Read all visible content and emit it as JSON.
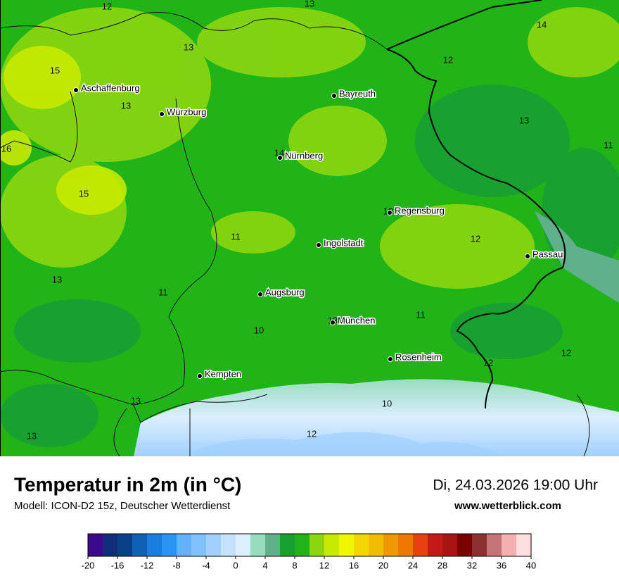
{
  "header": {
    "title": "Temperatur in 2m (in °C)",
    "subtitle": "Modell: ICON-D2 15z, Deutscher Wetterdienst",
    "date": "Di, 24.03.2026 19:00 Uhr",
    "website": "www.wetterblick.com"
  },
  "cities": [
    "Aschaffenburg",
    "Würzburg",
    "Bayreuth",
    "Nürnberg",
    "Regensburg",
    "Ingolstadt",
    "Passau",
    "Augsburg",
    "München",
    "Rosenheim",
    "Kempten"
  ],
  "map_labels": [
    12,
    13,
    14,
    13,
    12,
    15,
    13,
    13,
    16,
    11,
    14,
    15,
    13,
    11,
    12,
    13,
    11,
    11,
    10,
    13,
    12,
    12,
    13,
    10,
    12,
    13
  ],
  "colorbar": {
    "range": [
      -20,
      40
    ],
    "ticks": [
      -20,
      -16,
      -12,
      -8,
      -4,
      0,
      4,
      8,
      12,
      16,
      20,
      24,
      28,
      32,
      36,
      40
    ],
    "colors": [
      "#3a0a8a",
      "#0f2d78",
      "#0a4088",
      "#1060b8",
      "#1a7ee0",
      "#2a94f4",
      "#64b0fa",
      "#80c0ff",
      "#a0d0ff",
      "#c4e2ff",
      "#dceeff",
      "#98dcc0",
      "#60b08a",
      "#18a030",
      "#20b418",
      "#8cd610",
      "#c8ea00",
      "#f0f800",
      "#f2d800",
      "#f2bc00",
      "#f09800",
      "#f07800",
      "#e84010",
      "#c41818",
      "#a81414",
      "#7a0000",
      "#8c3030",
      "#c47474",
      "#f4b0b0",
      "#ffdede"
    ]
  }
}
